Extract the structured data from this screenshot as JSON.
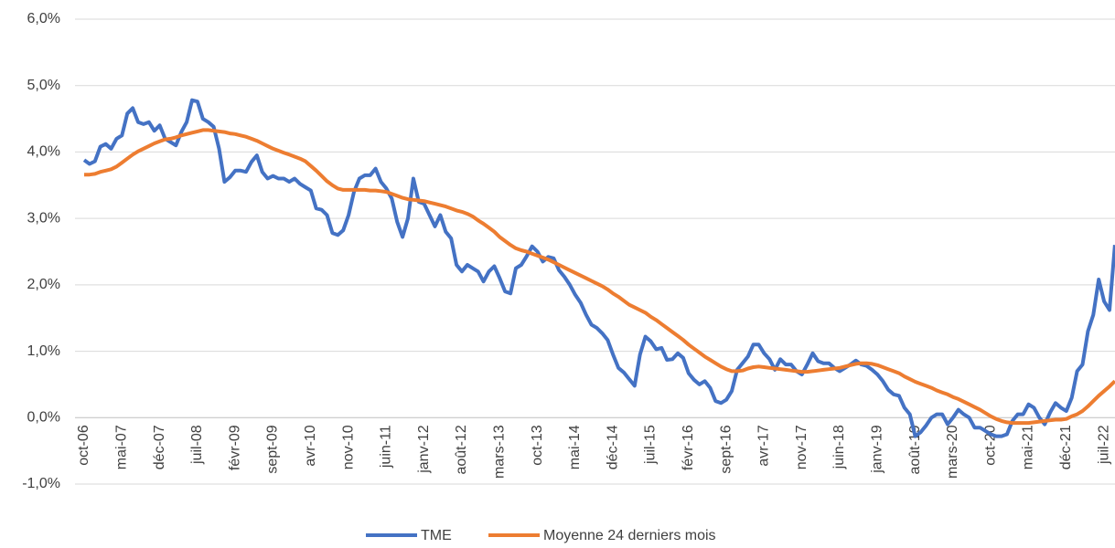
{
  "chart_data": {
    "type": "line",
    "categories": [
      "oct-06",
      null,
      null,
      null,
      null,
      null,
      null,
      "mai-07",
      null,
      null,
      null,
      null,
      null,
      null,
      "déc-07",
      null,
      null,
      null,
      null,
      null,
      null,
      "juil-08",
      null,
      null,
      null,
      null,
      null,
      null,
      "févr-09",
      null,
      null,
      null,
      null,
      null,
      null,
      "sept-09",
      null,
      null,
      null,
      null,
      null,
      null,
      "avr-10",
      null,
      null,
      null,
      null,
      null,
      null,
      "nov-10",
      null,
      null,
      null,
      null,
      null,
      null,
      "juin-11",
      null,
      null,
      null,
      null,
      null,
      null,
      "janv-12",
      null,
      null,
      null,
      null,
      null,
      null,
      "août-12",
      null,
      null,
      null,
      null,
      null,
      null,
      "mars-13",
      null,
      null,
      null,
      null,
      null,
      null,
      "oct-13",
      null,
      null,
      null,
      null,
      null,
      null,
      "mai-14",
      null,
      null,
      null,
      null,
      null,
      null,
      "déc-14",
      null,
      null,
      null,
      null,
      null,
      null,
      "juil-15",
      null,
      null,
      null,
      null,
      null,
      null,
      "févr-16",
      null,
      null,
      null,
      null,
      null,
      null,
      "sept-16",
      null,
      null,
      null,
      null,
      null,
      null,
      "avr-17",
      null,
      null,
      null,
      null,
      null,
      null,
      "nov-17",
      null,
      null,
      null,
      null,
      null,
      null,
      "juin-18",
      null,
      null,
      null,
      null,
      null,
      null,
      "janv-19",
      null,
      null,
      null,
      null,
      null,
      null,
      "août-19",
      null,
      null,
      null,
      null,
      null,
      null,
      "mars-20",
      null,
      null,
      null,
      null,
      null,
      null,
      "oct-20",
      null,
      null,
      null,
      null,
      null,
      null,
      "mai-21",
      null,
      null,
      null,
      null,
      null,
      null,
      "déc-21",
      null,
      null,
      null,
      null,
      null,
      null,
      "juil-22",
      null,
      null
    ],
    "series": [
      {
        "name": "TME",
        "color": "#4472c4",
        "values": [
          3.88,
          3.82,
          3.86,
          4.08,
          4.12,
          4.05,
          4.2,
          4.25,
          4.58,
          4.66,
          4.45,
          4.42,
          4.45,
          4.32,
          4.4,
          4.2,
          4.15,
          4.1,
          4.3,
          4.45,
          4.78,
          4.76,
          4.5,
          4.45,
          4.38,
          4.05,
          3.55,
          3.62,
          3.72,
          3.72,
          3.7,
          3.85,
          3.95,
          3.7,
          3.6,
          3.64,
          3.6,
          3.6,
          3.55,
          3.6,
          3.52,
          3.47,
          3.42,
          3.15,
          3.13,
          3.05,
          2.78,
          2.75,
          2.82,
          3.05,
          3.4,
          3.6,
          3.65,
          3.65,
          3.75,
          3.55,
          3.45,
          3.3,
          2.95,
          2.72,
          3.0,
          3.6,
          3.25,
          3.22,
          3.05,
          2.88,
          3.05,
          2.8,
          2.7,
          2.3,
          2.2,
          2.3,
          2.25,
          2.2,
          2.05,
          2.2,
          2.28,
          2.1,
          1.9,
          1.87,
          2.25,
          2.3,
          2.43,
          2.58,
          2.5,
          2.35,
          2.42,
          2.4,
          2.22,
          2.12,
          2.0,
          1.85,
          1.73,
          1.55,
          1.4,
          1.35,
          1.27,
          1.17,
          0.95,
          0.75,
          0.68,
          0.58,
          0.48,
          0.95,
          1.22,
          1.15,
          1.03,
          1.05,
          0.87,
          0.88,
          0.97,
          0.9,
          0.67,
          0.57,
          0.5,
          0.55,
          0.45,
          0.25,
          0.22,
          0.27,
          0.4,
          0.72,
          0.82,
          0.92,
          1.1,
          1.1,
          0.97,
          0.88,
          0.72,
          0.88,
          0.8,
          0.8,
          0.7,
          0.65,
          0.8,
          0.97,
          0.85,
          0.82,
          0.82,
          0.75,
          0.7,
          0.75,
          0.8,
          0.86,
          0.8,
          0.78,
          0.72,
          0.65,
          0.55,
          0.42,
          0.35,
          0.33,
          0.15,
          0.05,
          -0.28,
          -0.22,
          -0.12,
          0.0,
          0.05,
          0.05,
          -0.1,
          0.0,
          0.12,
          0.05,
          0.0,
          -0.15,
          -0.15,
          -0.2,
          -0.25,
          -0.28,
          -0.28,
          -0.25,
          -0.05,
          0.05,
          0.05,
          0.2,
          0.15,
          0.0,
          -0.1,
          0.08,
          0.22,
          0.15,
          0.1,
          0.3,
          0.7,
          0.8,
          1.3,
          1.55,
          2.08,
          1.75,
          1.62,
          2.6
        ]
      },
      {
        "name": "Moyenne 24 derniers mois",
        "color": "#ed7d31",
        "values": [
          3.66,
          3.66,
          3.67,
          3.7,
          3.72,
          3.74,
          3.78,
          3.84,
          3.9,
          3.96,
          4.01,
          4.05,
          4.09,
          4.13,
          4.16,
          4.19,
          4.2,
          4.22,
          4.25,
          4.27,
          4.29,
          4.31,
          4.33,
          4.33,
          4.32,
          4.31,
          4.3,
          4.28,
          4.27,
          4.25,
          4.23,
          4.2,
          4.17,
          4.13,
          4.09,
          4.05,
          4.02,
          3.99,
          3.96,
          3.93,
          3.9,
          3.86,
          3.79,
          3.72,
          3.64,
          3.56,
          3.5,
          3.45,
          3.43,
          3.43,
          3.43,
          3.43,
          3.43,
          3.42,
          3.42,
          3.41,
          3.4,
          3.37,
          3.34,
          3.31,
          3.29,
          3.28,
          3.27,
          3.26,
          3.24,
          3.22,
          3.2,
          3.18,
          3.15,
          3.12,
          3.1,
          3.07,
          3.03,
          2.97,
          2.92,
          2.86,
          2.8,
          2.72,
          2.66,
          2.6,
          2.55,
          2.52,
          2.5,
          2.47,
          2.44,
          2.41,
          2.38,
          2.34,
          2.3,
          2.26,
          2.22,
          2.18,
          2.14,
          2.1,
          2.06,
          2.02,
          1.98,
          1.93,
          1.87,
          1.82,
          1.76,
          1.7,
          1.66,
          1.62,
          1.58,
          1.52,
          1.47,
          1.41,
          1.35,
          1.29,
          1.23,
          1.17,
          1.1,
          1.04,
          0.98,
          0.92,
          0.87,
          0.82,
          0.77,
          0.73,
          0.7,
          0.7,
          0.71,
          0.74,
          0.76,
          0.77,
          0.76,
          0.75,
          0.74,
          0.73,
          0.72,
          0.71,
          0.7,
          0.69,
          0.69,
          0.7,
          0.71,
          0.72,
          0.73,
          0.74,
          0.75,
          0.77,
          0.79,
          0.81,
          0.82,
          0.82,
          0.81,
          0.79,
          0.76,
          0.73,
          0.7,
          0.67,
          0.62,
          0.58,
          0.54,
          0.51,
          0.48,
          0.45,
          0.41,
          0.38,
          0.35,
          0.31,
          0.28,
          0.24,
          0.2,
          0.16,
          0.12,
          0.07,
          0.02,
          -0.02,
          -0.05,
          -0.07,
          -0.08,
          -0.08,
          -0.08,
          -0.08,
          -0.07,
          -0.06,
          -0.05,
          -0.04,
          -0.03,
          -0.03,
          -0.02,
          0.02,
          0.05,
          0.1,
          0.17,
          0.25,
          0.33,
          0.4,
          0.47,
          0.55
        ]
      }
    ],
    "ylim": [
      -1,
      6
    ],
    "yticks": [
      {
        "value": -1,
        "label": "-1,0%"
      },
      {
        "value": 0,
        "label": "0,0%"
      },
      {
        "value": 1,
        "label": "1,0%"
      },
      {
        "value": 2,
        "label": "2,0%"
      },
      {
        "value": 3,
        "label": "3,0%"
      },
      {
        "value": 4,
        "label": "4,0%"
      },
      {
        "value": 5,
        "label": "5,0%"
      },
      {
        "value": 6,
        "label": "6,0%"
      }
    ],
    "grid": true,
    "legend": "bottom"
  }
}
